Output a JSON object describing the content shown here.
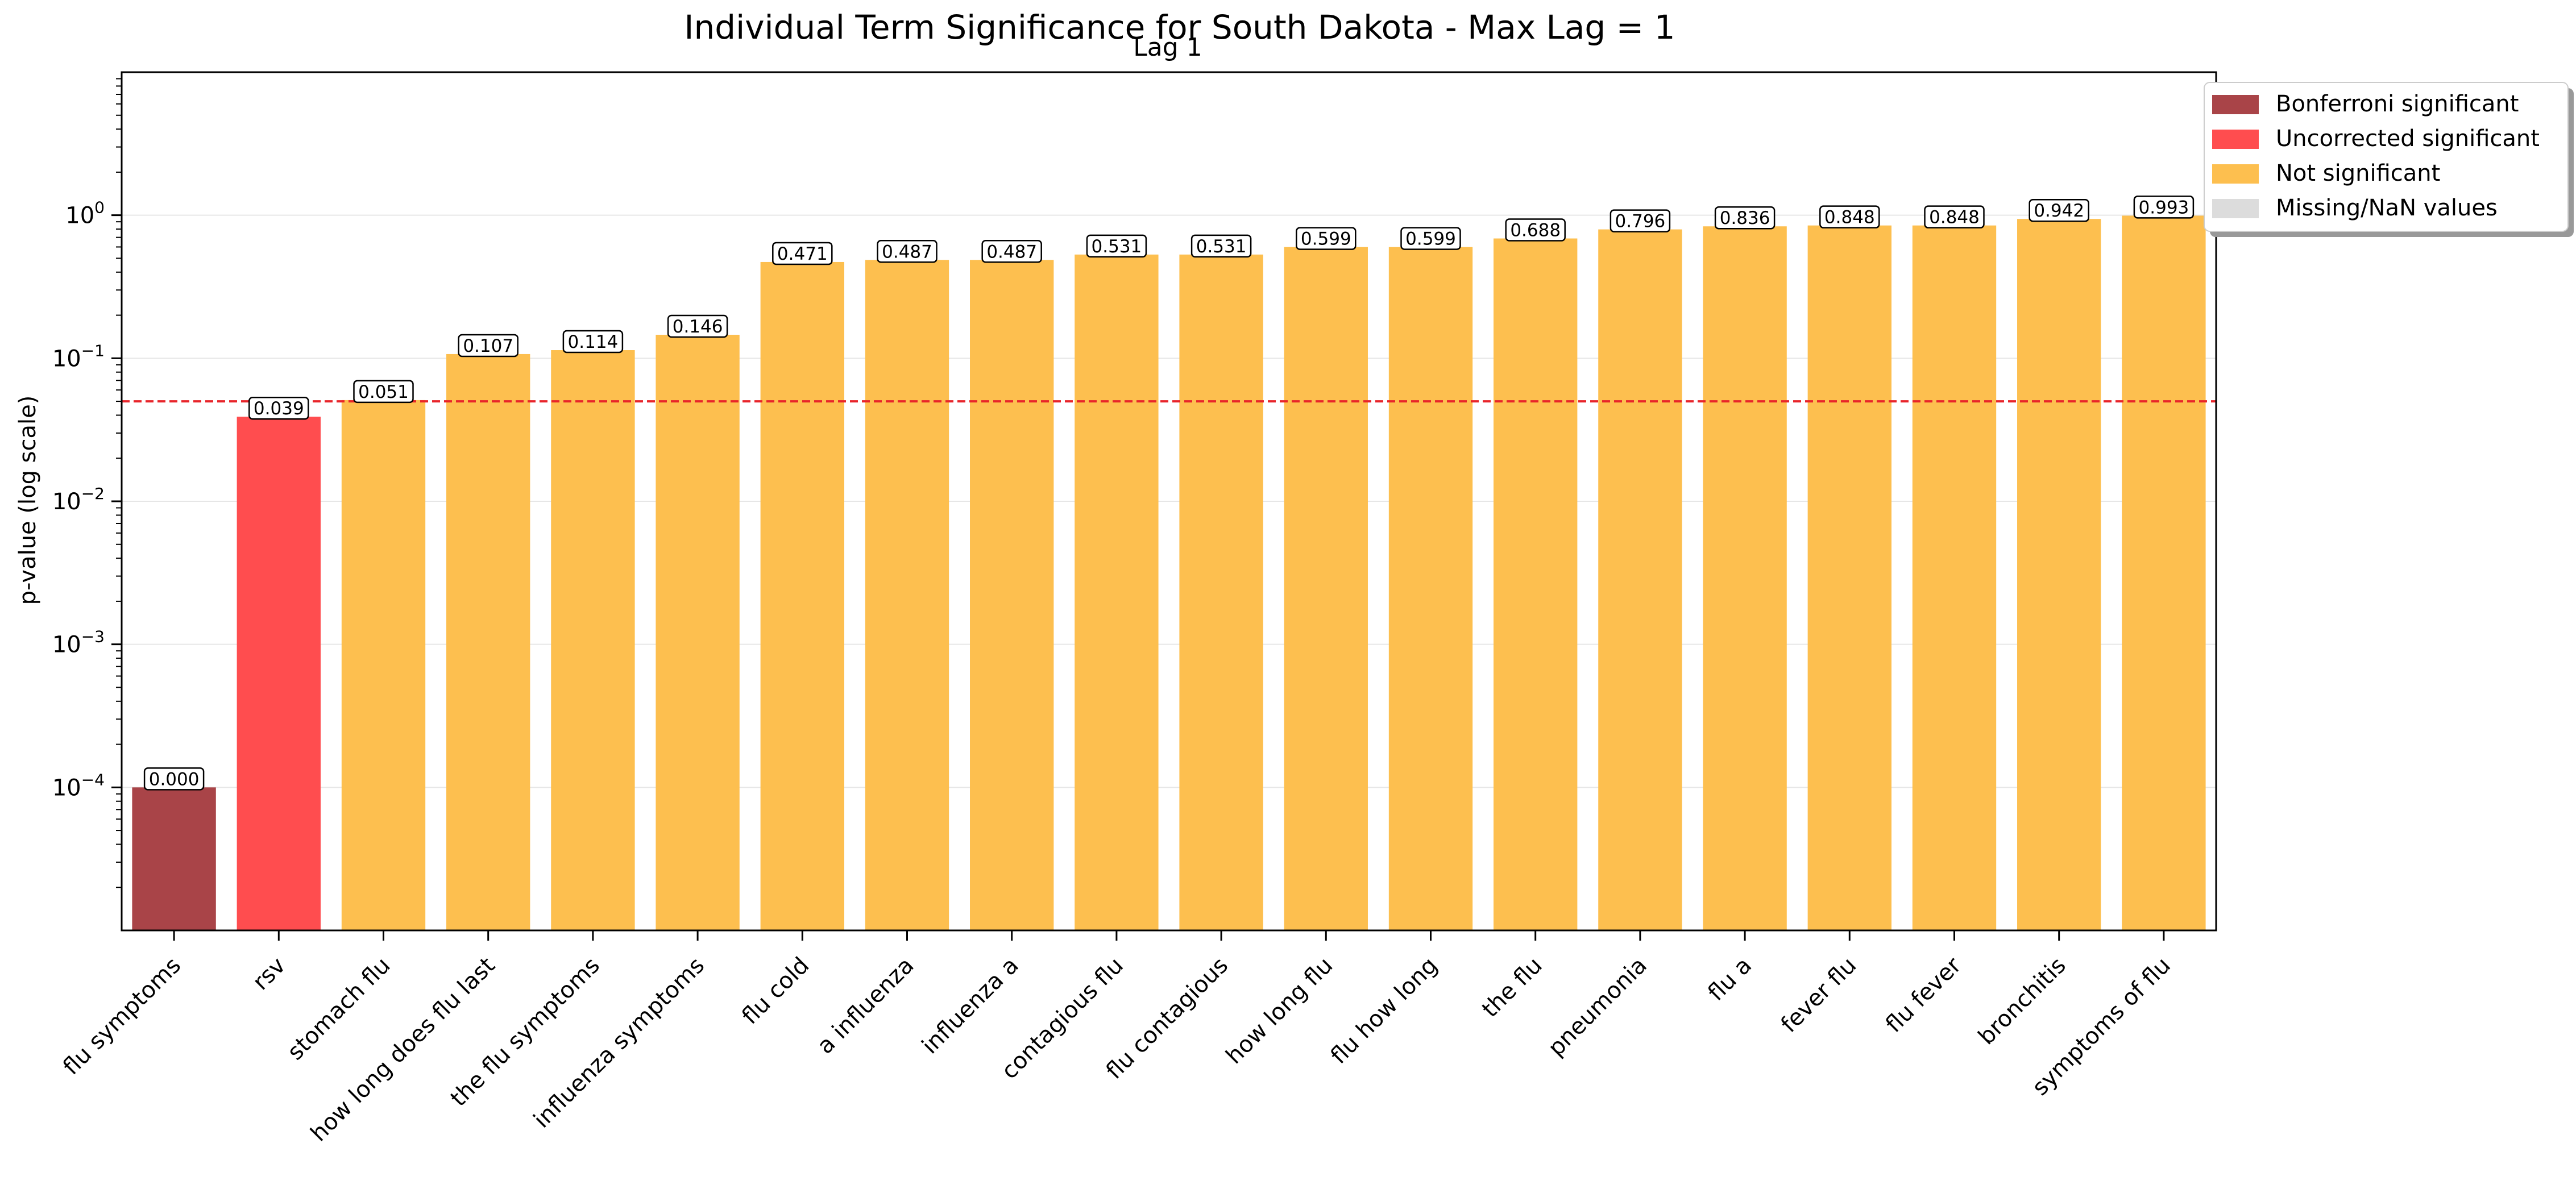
{
  "chart_data": {
    "type": "bar",
    "title": "Individual Term Significance for South Dakota - Max Lag = 1",
    "subtitle": "Lag 1",
    "xlabel": "",
    "ylabel": "p-value (log scale)",
    "yscale": "log",
    "ylim": [
      1e-05,
      10
    ],
    "yticks": [
      {
        "value": 0.0001,
        "base": "10",
        "exp": "−4"
      },
      {
        "value": 0.001,
        "base": "10",
        "exp": "−3"
      },
      {
        "value": 0.01,
        "base": "10",
        "exp": "−2"
      },
      {
        "value": 0.1,
        "base": "10",
        "exp": "−1"
      },
      {
        "value": 1,
        "base": "10",
        "exp": "0"
      }
    ],
    "grid": "horizontal",
    "threshold_line": {
      "value": 0.05,
      "color": "#e8242a",
      "style": "dashed"
    },
    "categories": [
      "flu symptoms",
      "rsv",
      "stomach flu",
      "how long does flu last",
      "the flu symptoms",
      "influenza symptoms",
      "flu cold",
      "a influenza",
      "influenza a",
      "contagious flu",
      "flu contagious",
      "how long flu",
      "flu how long",
      "the flu",
      "pneumonia",
      "flu a",
      "fever flu",
      "flu fever",
      "bronchitis",
      "symptoms of flu"
    ],
    "values": [
      0.0001,
      0.039,
      0.051,
      0.107,
      0.114,
      0.146,
      0.471,
      0.487,
      0.487,
      0.531,
      0.531,
      0.599,
      0.599,
      0.688,
      0.796,
      0.836,
      0.848,
      0.848,
      0.942,
      0.993
    ],
    "value_labels": [
      "0.000",
      "0.039",
      "0.051",
      "0.107",
      "0.114",
      "0.146",
      "0.471",
      "0.487",
      "0.487",
      "0.531",
      "0.531",
      "0.599",
      "0.599",
      "0.688",
      "0.796",
      "0.836",
      "0.848",
      "0.848",
      "0.942",
      "0.993"
    ],
    "status": [
      "bonferroni",
      "uncorrected",
      "ns",
      "ns",
      "ns",
      "ns",
      "ns",
      "ns",
      "ns",
      "ns",
      "ns",
      "ns",
      "ns",
      "ns",
      "ns",
      "ns",
      "ns",
      "ns",
      "ns",
      "ns"
    ],
    "legend": {
      "placement": "top-right",
      "entries": [
        {
          "key": "bonferroni",
          "label": "Bonferroni significant",
          "color": "#a94448"
        },
        {
          "key": "uncorrected",
          "label": "Uncorrected significant",
          "color": "#ff4d4f"
        },
        {
          "key": "ns",
          "label": "Not significant",
          "color": "#fdbf4f"
        },
        {
          "key": "missing",
          "label": "Missing/NaN values",
          "color": "#dcdcdc"
        }
      ]
    }
  }
}
